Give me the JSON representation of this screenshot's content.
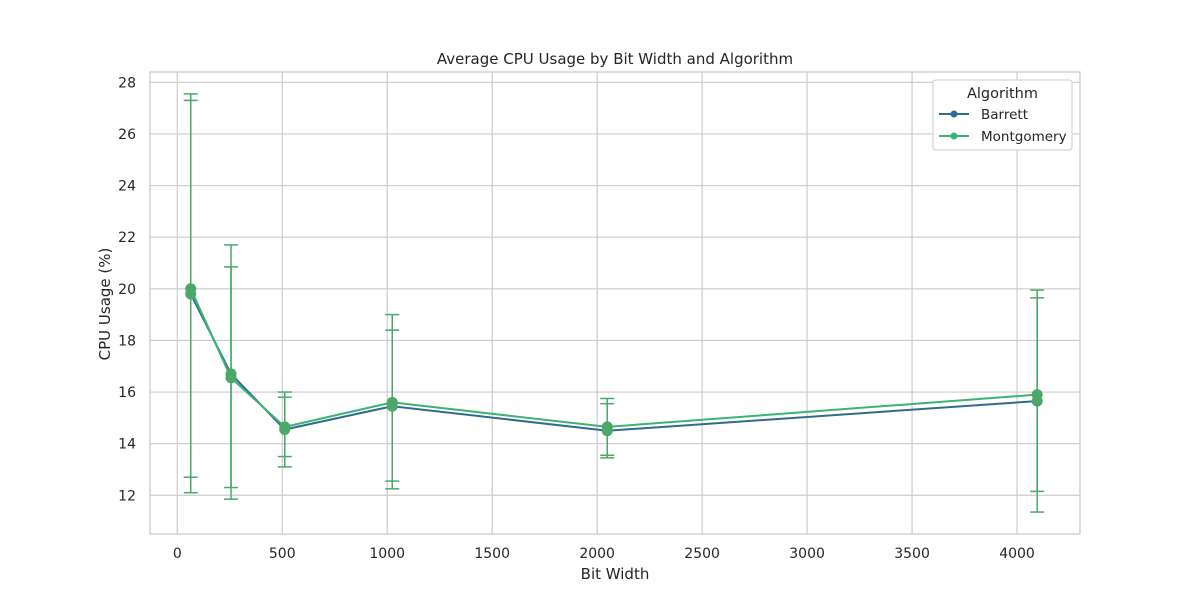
{
  "chart_data": {
    "type": "line",
    "title": "Average CPU Usage by Bit Width and Algorithm",
    "xlabel": "Bit Width",
    "ylabel": "CPU Usage (%)",
    "x": [
      64,
      256,
      512,
      1024,
      2048,
      4096
    ],
    "xlim": [
      -130,
      4300
    ],
    "ylim": [
      10.5,
      28.4
    ],
    "xticks": [
      0,
      500,
      1000,
      1500,
      2000,
      2500,
      3000,
      3500,
      4000
    ],
    "yticks": [
      12,
      14,
      16,
      18,
      20,
      22,
      24,
      26,
      28
    ],
    "grid": true,
    "legend": {
      "title": "Algorithm",
      "position": "top-right"
    },
    "series": [
      {
        "name": "Barrett",
        "color": "#2f6b8e",
        "values": [
          19.8,
          16.7,
          14.55,
          15.45,
          14.5,
          15.65
        ],
        "error_low": [
          12.1,
          11.85,
          13.1,
          12.25,
          13.45,
          11.35
        ],
        "error_high": [
          27.55,
          21.7,
          16.0,
          18.4,
          15.55,
          19.95
        ]
      },
      {
        "name": "Montgomery",
        "color": "#3bb372",
        "values": [
          20.0,
          16.55,
          14.65,
          15.6,
          14.65,
          15.9
        ],
        "error_low": [
          12.7,
          12.3,
          13.5,
          12.55,
          13.55,
          12.15
        ],
        "error_high": [
          27.3,
          20.85,
          15.8,
          19.0,
          15.75,
          19.65
        ]
      }
    ],
    "errorbar_color": "#4ca868"
  }
}
